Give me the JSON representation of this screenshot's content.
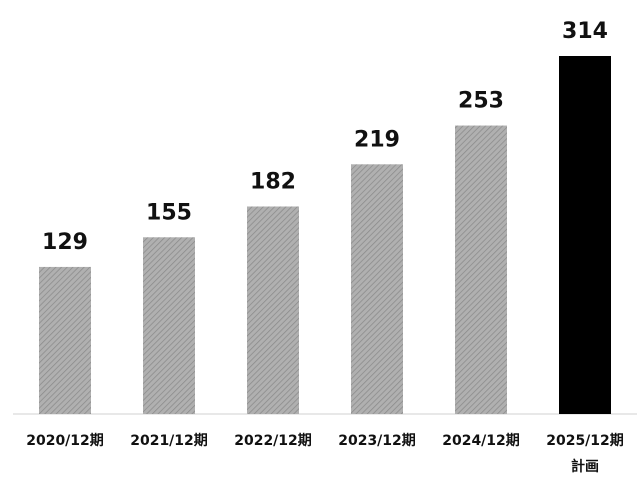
{
  "chart_data": {
    "type": "bar",
    "categories": [
      "2020/12期",
      "2021/12期",
      "2022/12期",
      "2023/12期",
      "2024/12期",
      "2025/12期"
    ],
    "sublabels": [
      null,
      null,
      null,
      null,
      null,
      "計画"
    ],
    "values": [
      129,
      155,
      182,
      219,
      253,
      314
    ],
    "colors": [
      "#a6a6a6",
      "#a6a6a6",
      "#a6a6a6",
      "#a6a6a6",
      "#a6a6a6",
      "#000000"
    ],
    "hatched": [
      true,
      true,
      true,
      true,
      true,
      false
    ]
  }
}
